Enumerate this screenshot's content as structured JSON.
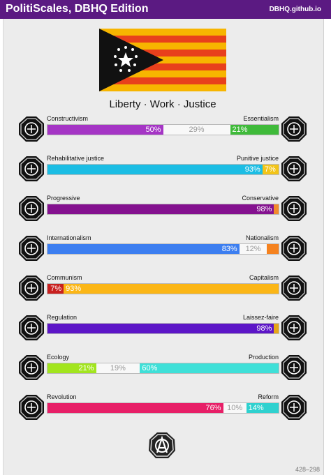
{
  "header": {
    "title": "PolitiScales, DBHQ Edition",
    "site": "DBHQ.github.io"
  },
  "motto": "Liberty · Work · Justice",
  "flag": {
    "stripes": [
      "#f7b500",
      "#e8401c"
    ],
    "triangle": "#111111",
    "stars": "#ffffff"
  },
  "axes": [
    {
      "left_label": "Constructivism",
      "right_label": "Essentialism",
      "left_icon": "constructivism-icon",
      "right_icon": "essentialism-icon",
      "left_value": 50,
      "right_value": 21,
      "left_text": "50%",
      "mid_text": "29%",
      "right_text": "21%",
      "left_color": "#a535c5",
      "right_color": "#3fba3a"
    },
    {
      "left_label": "Rehabilitative justice",
      "right_label": "Punitive justice",
      "left_icon": "rehabilitative-justice-icon",
      "right_icon": "punitive-justice-icon",
      "left_value": 93,
      "right_value": 7,
      "left_text": "93%",
      "mid_text": "",
      "right_text": "7%",
      "left_color": "#1bbde4",
      "right_color": "#f2c418"
    },
    {
      "left_label": "Progressive",
      "right_label": "Conservative",
      "left_icon": "progressive-icon",
      "right_icon": "conservative-icon",
      "left_value": 98,
      "right_value": 2,
      "left_text": "98%",
      "mid_text": "",
      "right_text": "",
      "left_color": "#84118f",
      "right_color": "#f28a2c"
    },
    {
      "left_label": "Internationalism",
      "right_label": "Nationalism",
      "left_icon": "internationalism-icon",
      "right_icon": "nationalism-icon",
      "left_value": 83,
      "right_value": 5,
      "left_text": "83%",
      "mid_text": "12%",
      "right_text": "",
      "left_color": "#3c7ef0",
      "right_color": "#f5821f"
    },
    {
      "left_label": "Communism",
      "right_label": "Capitalism",
      "left_icon": "communism-icon",
      "right_icon": "capitalism-icon",
      "left_value": 7,
      "right_value": 93,
      "left_text": "7%",
      "mid_text": "",
      "right_text": "93%",
      "left_color": "#c8201f",
      "right_color": "#fbb616"
    },
    {
      "left_label": "Regulation",
      "right_label": "Laissez-faire",
      "left_icon": "regulation-icon",
      "right_icon": "laissez-faire-icon",
      "left_value": 98,
      "right_value": 2,
      "left_text": "98%",
      "mid_text": "",
      "right_text": "",
      "left_color": "#5c15c7",
      "right_color": "#e6a618"
    },
    {
      "left_label": "Ecology",
      "right_label": "Production",
      "left_icon": "ecology-icon",
      "right_icon": "production-icon",
      "left_value": 21,
      "right_value": 60,
      "left_text": "21%",
      "mid_text": "19%",
      "right_text": "60%",
      "left_color": "#a2e51e",
      "right_color": "#3fe0d8"
    },
    {
      "left_label": "Revolution",
      "right_label": "Reform",
      "left_icon": "revolution-icon",
      "right_icon": "reform-icon",
      "left_value": 76,
      "right_value": 14,
      "left_text": "76%",
      "mid_text": "10%",
      "right_text": "14%",
      "left_color": "#e71f67",
      "right_color": "#2fd1cf"
    }
  ],
  "footer": {
    "icon": "anarchy-badge-icon",
    "coords": "428–298"
  }
}
